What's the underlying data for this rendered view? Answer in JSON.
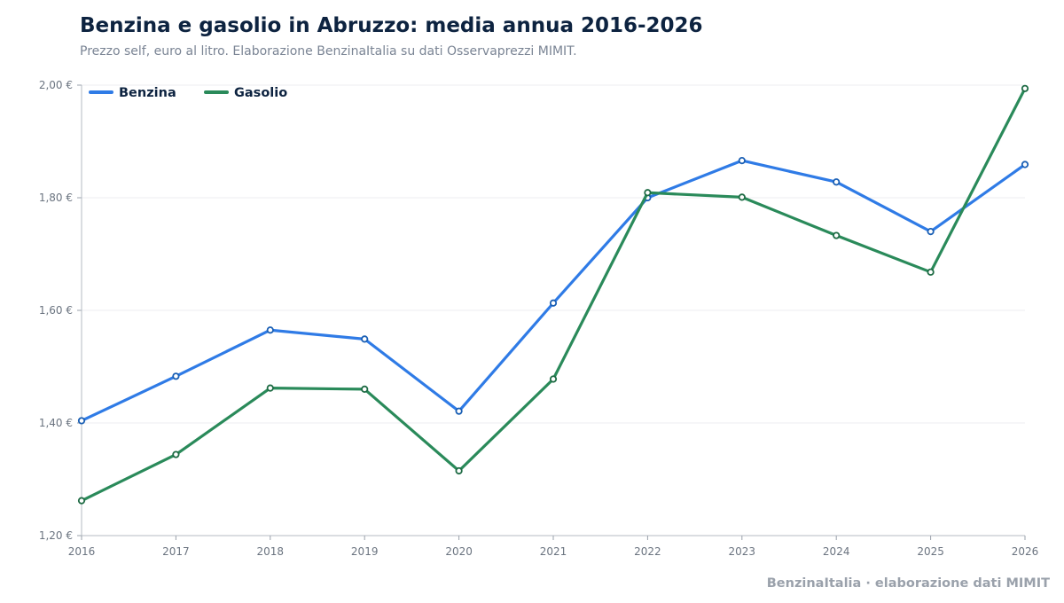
{
  "chart_data": {
    "type": "line",
    "title": "Benzina e gasolio in Abruzzo: media annua 2016-2026",
    "subtitle": "Prezzo self, euro al litro. Elaborazione BenzinaItalia su dati Osservaprezzi MIMIT.",
    "xlabel": "",
    "ylabel": "",
    "x": [
      "2016",
      "2017",
      "2018",
      "2019",
      "2020",
      "2021",
      "2022",
      "2023",
      "2024",
      "2025",
      "2026"
    ],
    "ylim": [
      1.2,
      2.0
    ],
    "yticks": [
      1.2,
      1.4,
      1.6,
      1.8,
      2.0
    ],
    "ytick_labels": [
      "1,20 €",
      "1,40 €",
      "1,60 €",
      "1,80 €",
      "2,00 €"
    ],
    "grid": "horizontal",
    "legend_position": "top-left",
    "series": [
      {
        "name": "Benzina",
        "color": "#2f7be6",
        "values": [
          1.404,
          1.483,
          1.565,
          1.549,
          1.421,
          1.613,
          1.8,
          1.866,
          1.828,
          1.74,
          1.859
        ]
      },
      {
        "name": "Gasolio",
        "color": "#2a8a5a",
        "values": [
          1.262,
          1.344,
          1.462,
          1.46,
          1.315,
          1.478,
          1.809,
          1.801,
          1.733,
          1.668,
          1.994
        ]
      }
    ]
  },
  "footer": {
    "credit": "BenzinaItalia · elaborazione dati MIMIT"
  }
}
